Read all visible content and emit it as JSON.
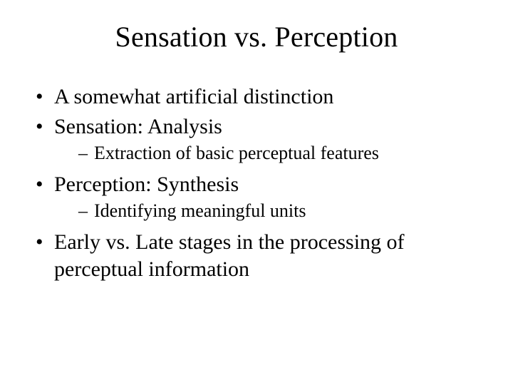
{
  "slide": {
    "title": "Sensation vs. Perception",
    "bullets": [
      {
        "text": "A somewhat artificial distinction",
        "sub": []
      },
      {
        "text": "Sensation:  Analysis",
        "sub": [
          "Extraction of basic perceptual features"
        ]
      },
      {
        "text": "Perception:  Synthesis",
        "sub": [
          "Identifying meaningful units"
        ]
      },
      {
        "text": "Early vs. Late stages in the processing of perceptual information",
        "sub": []
      }
    ]
  },
  "style": {
    "background_color": "#ffffff",
    "text_color": "#000000",
    "font_family": "Times New Roman",
    "title_fontsize": 40,
    "bullet_fontsize": 30,
    "subbullet_fontsize": 26,
    "bullet_marker": "•",
    "subbullet_marker": "–"
  }
}
